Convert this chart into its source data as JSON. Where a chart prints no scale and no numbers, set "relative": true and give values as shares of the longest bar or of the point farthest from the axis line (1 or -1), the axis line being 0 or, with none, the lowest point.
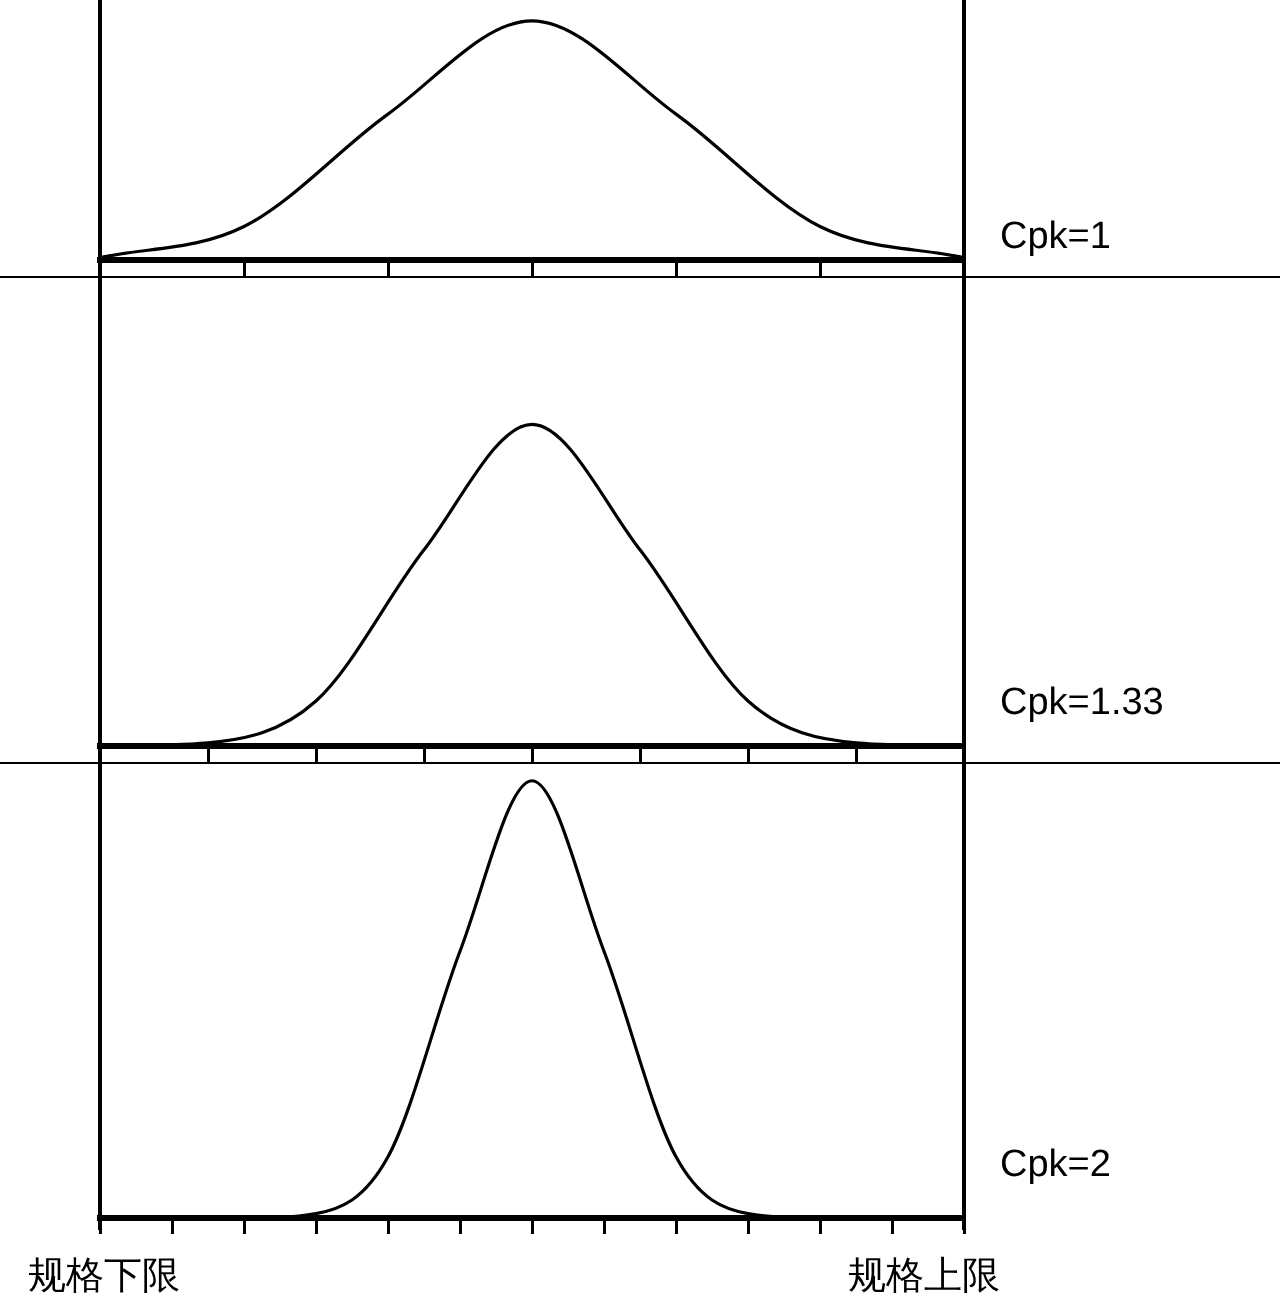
{
  "chart_data": [
    {
      "type": "line",
      "annotations": [
        "Cpk=1"
      ],
      "relative": true,
      "categories": [
        null,
        null,
        null,
        null,
        null,
        null,
        null
      ],
      "series": [
        {
          "color": "#000000",
          "values": [
            0.01,
            0.14,
            0.61,
            1,
            0.61,
            0.14,
            0.01
          ]
        }
      ]
    },
    {
      "type": "line",
      "annotations": [
        "Cpk=1.33"
      ],
      "relative": true,
      "categories": [
        null,
        null,
        null,
        null,
        null,
        null,
        null,
        null,
        null
      ],
      "series": [
        {
          "color": "#000000",
          "values": [
            0,
            0.01,
            0.14,
            0.61,
            1,
            0.61,
            0.14,
            0.01,
            0
          ]
        }
      ]
    },
    {
      "type": "line",
      "relative": true,
      "categories": [
        null,
        null,
        null,
        null,
        null,
        null,
        null,
        null,
        null,
        null,
        null,
        null,
        null
      ],
      "series": [
        {
          "color": "#000000",
          "values": [
            0,
            0,
            0,
            0.01,
            0.14,
            0.61,
            1,
            0.61,
            0.14,
            0.01,
            0,
            0,
            0
          ]
        }
      ],
      "annotations": [
        "Cpk=2",
        "规格下限",
        "规格上限"
      ]
    }
  ]
}
